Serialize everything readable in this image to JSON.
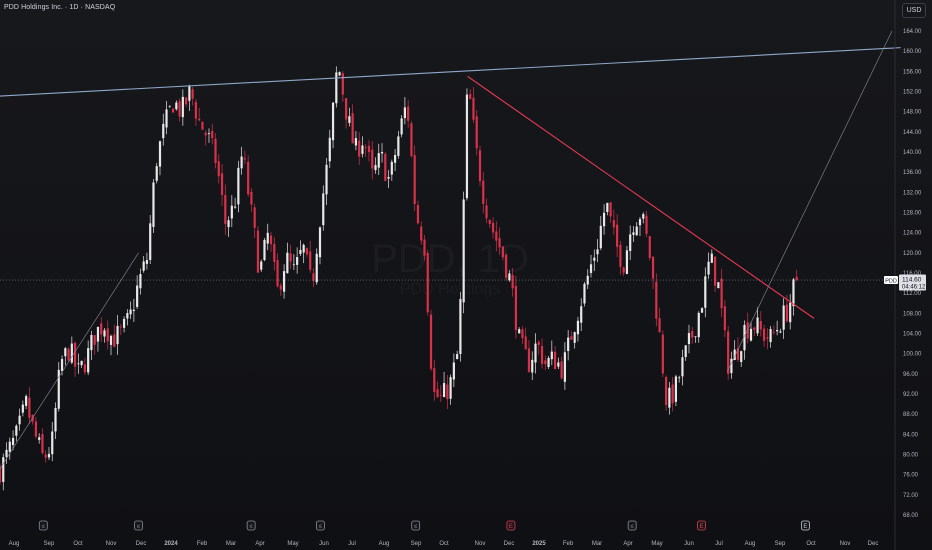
{
  "header": {
    "title": "PDD Holdings Inc. · 1D · NASDAQ",
    "currency_button": "USD"
  },
  "watermark": {
    "symbol": "PDD, 1D",
    "company": "PDD Holdings"
  },
  "price_tag": {
    "symbol": "PDD",
    "price": "114.60",
    "countdown": "04:46:12"
  },
  "colors": {
    "up": "#e8e8e8",
    "down": "#d9314a",
    "trendline_red": "#e53950",
    "trendline_blue": "#8fa8c8",
    "background": "#131418"
  },
  "chart_data": {
    "type": "candlestick",
    "symbol": "PDD",
    "timeframe": "1D",
    "exchange": "NASDAQ",
    "ylim": [
      66,
      168
    ],
    "y_ticks": [
      68,
      72,
      76,
      80,
      84,
      88,
      92,
      96,
      100,
      104,
      108,
      112,
      116,
      120,
      124,
      128,
      132,
      136,
      140,
      144,
      148,
      152,
      156,
      160,
      164
    ],
    "x_ticks": [
      "Aug",
      "Sep",
      "Oct",
      "Nov",
      "Dec",
      "2024",
      "Feb",
      "Mar",
      "Apr",
      "May",
      "Jun",
      "Jul",
      "Aug",
      "Sep",
      "Oct",
      "Nov",
      "Dec",
      "2025",
      "Feb",
      "Mar",
      "Apr",
      "May",
      "Jun",
      "Jul",
      "Aug",
      "Sep",
      "Oct",
      "Nov",
      "Dec"
    ],
    "current_price": 114.6,
    "close_path": [
      [
        0,
        77
      ],
      [
        2,
        84
      ],
      [
        3,
        90
      ],
      [
        4,
        84
      ],
      [
        5,
        79
      ],
      [
        6,
        82
      ],
      [
        7,
        98
      ],
      [
        8,
        101
      ],
      [
        9,
        96
      ],
      [
        10,
        99
      ],
      [
        11,
        104
      ],
      [
        12,
        106
      ],
      [
        13,
        103
      ],
      [
        14,
        104
      ],
      [
        15,
        107
      ],
      [
        16,
        114
      ],
      [
        17,
        119
      ],
      [
        18,
        138
      ],
      [
        19,
        145
      ],
      [
        20,
        150
      ],
      [
        21,
        148
      ],
      [
        22,
        152
      ],
      [
        23,
        146
      ],
      [
        24,
        143
      ],
      [
        25,
        138
      ],
      [
        26,
        126
      ],
      [
        27,
        129
      ],
      [
        28,
        140
      ],
      [
        29,
        128
      ],
      [
        30,
        116
      ],
      [
        31,
        124
      ],
      [
        32,
        112
      ],
      [
        33,
        119
      ],
      [
        34,
        116
      ],
      [
        35,
        121
      ],
      [
        36,
        113
      ],
      [
        37,
        128
      ],
      [
        38,
        140
      ],
      [
        39,
        158
      ],
      [
        40,
        148
      ],
      [
        41,
        140
      ],
      [
        42,
        143
      ],
      [
        43,
        135
      ],
      [
        44,
        139
      ],
      [
        45,
        134
      ],
      [
        46,
        143
      ],
      [
        47,
        150
      ],
      [
        48,
        128
      ],
      [
        49,
        122
      ],
      [
        50,
        92
      ],
      [
        51,
        91
      ],
      [
        52,
        94
      ],
      [
        53,
        101
      ],
      [
        54,
        154
      ],
      [
        55,
        140
      ],
      [
        56,
        130
      ],
      [
        57,
        124
      ],
      [
        58,
        120
      ],
      [
        59,
        114
      ],
      [
        60,
        102
      ],
      [
        61,
        98
      ],
      [
        62,
        102
      ],
      [
        63,
        98
      ],
      [
        64,
        99
      ],
      [
        65,
        97
      ],
      [
        66,
        104
      ],
      [
        67,
        110
      ],
      [
        68,
        116
      ],
      [
        69,
        122
      ],
      [
        70,
        130
      ],
      [
        71,
        122
      ],
      [
        72,
        118
      ],
      [
        73,
        126
      ],
      [
        74,
        128
      ],
      [
        75,
        120
      ],
      [
        76,
        106
      ],
      [
        77,
        90
      ],
      [
        78,
        93
      ],
      [
        79,
        99
      ],
      [
        80,
        104
      ],
      [
        81,
        110
      ],
      [
        82,
        119
      ],
      [
        83,
        113
      ],
      [
        84,
        98
      ],
      [
        85,
        100
      ],
      [
        86,
        105
      ],
      [
        87,
        106
      ],
      [
        88,
        104
      ],
      [
        89,
        103
      ],
      [
        90,
        106
      ],
      [
        91,
        109
      ],
      [
        92,
        114.6
      ]
    ],
    "trendlines": [
      {
        "name": "resistance-upper",
        "color": "blue",
        "points": [
          [
            -1,
            151
          ],
          [
            104,
            160.7
          ]
        ]
      },
      {
        "name": "descending-resistance",
        "color": "red",
        "points": [
          [
            54,
            155
          ],
          [
            94,
            107
          ]
        ]
      },
      {
        "name": "rising-support-1",
        "color": "gray",
        "points": [
          [
            -1,
            74.5
          ],
          [
            16,
            120
          ]
        ]
      },
      {
        "name": "rising-support-2",
        "color": "gray",
        "points": [
          [
            84,
            96.5
          ],
          [
            103,
            164
          ]
        ]
      }
    ],
    "event_markers": [
      {
        "x": 5,
        "type": "dividend"
      },
      {
        "x": 16,
        "type": "dividend"
      },
      {
        "x": 29,
        "type": "dividend"
      },
      {
        "x": 37,
        "type": "dividend"
      },
      {
        "x": 48,
        "type": "dividend"
      },
      {
        "x": 59,
        "type": "earnings"
      },
      {
        "x": 73,
        "type": "dividend"
      },
      {
        "x": 81,
        "type": "earnings"
      },
      {
        "x": 93,
        "type": "earnings-upcoming"
      }
    ]
  }
}
